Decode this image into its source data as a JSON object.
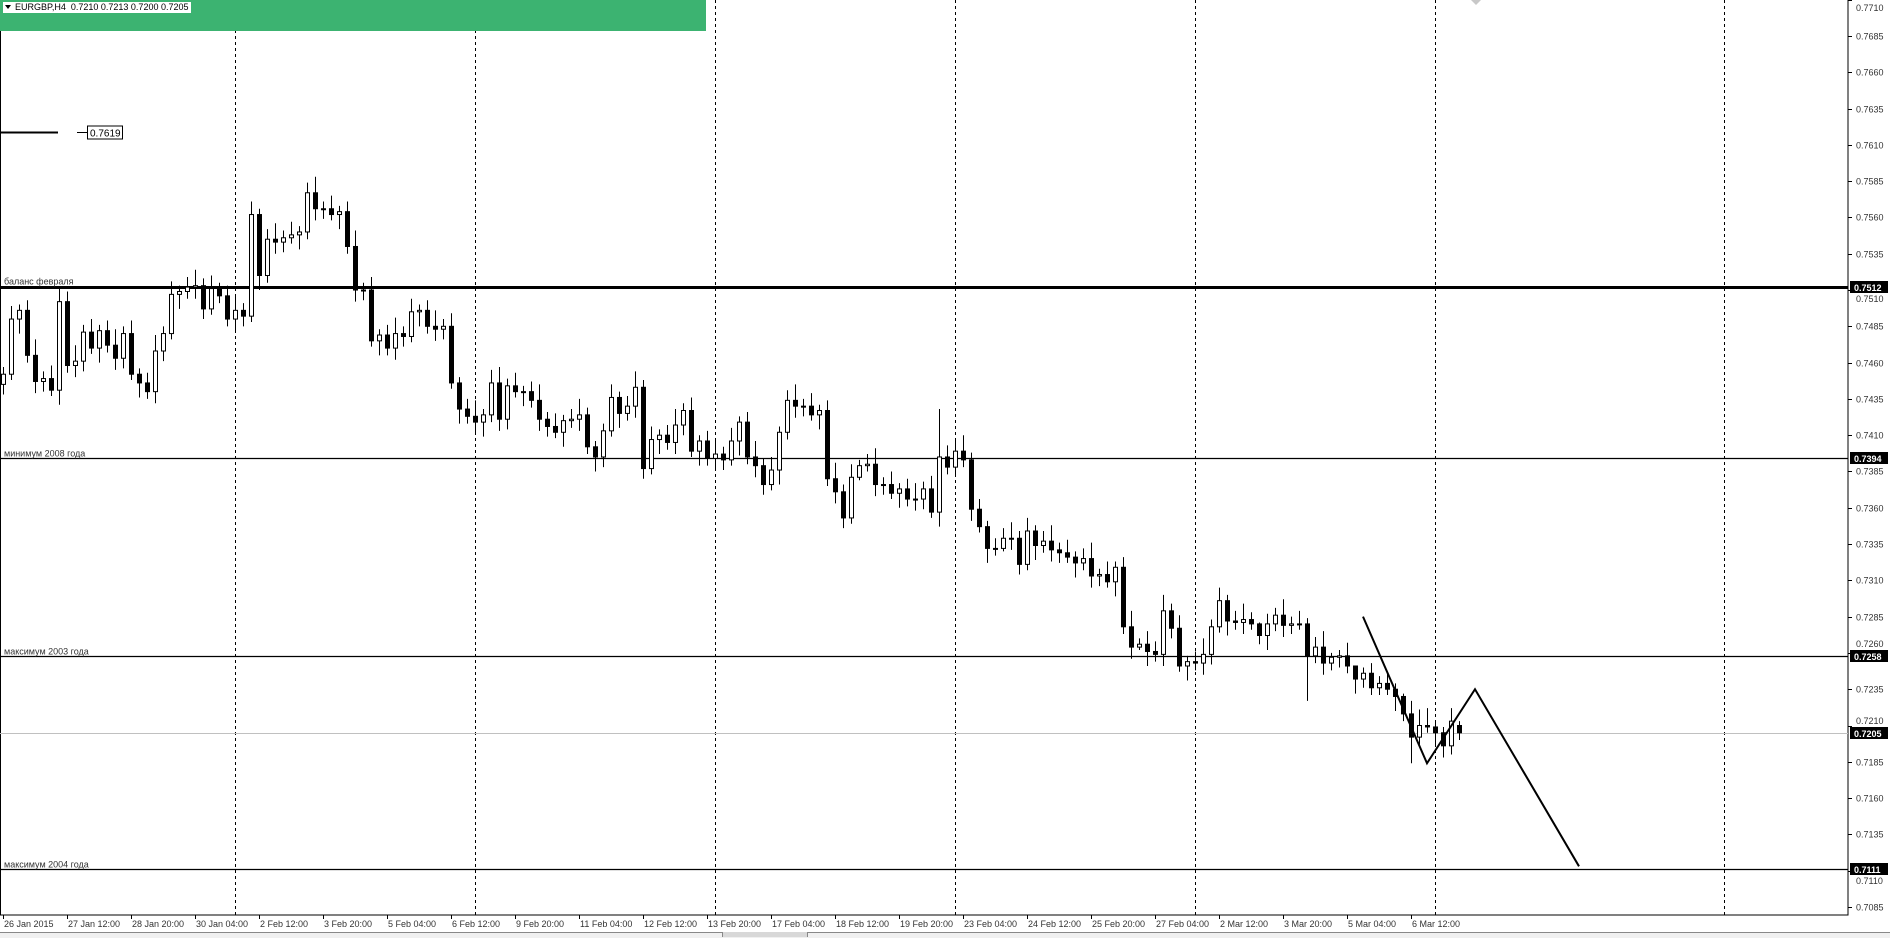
{
  "header": {
    "symbol": "EURGBP,H4",
    "ohlc": "0.7210 0.7213 0.7200 0.7205"
  },
  "colors": {
    "header_band": "#3cb371",
    "bull_body": "#ffffff",
    "bear_body": "#000000",
    "current_price_line": "#c0c0c0",
    "price_label_bg": "#000000"
  },
  "chart_data": {
    "type": "candlestick",
    "symbol": "EURGBP",
    "timeframe": "H4",
    "grid": false,
    "ylim": [
      0.7074,
      0.771
    ],
    "y_ticks": [
      "0.7710",
      "0.7685",
      "0.7660",
      "0.7635",
      "0.7610",
      "0.7585",
      "0.7560",
      "0.7535",
      "0.7510",
      "0.7485",
      "0.7460",
      "0.7435",
      "0.7410",
      "0.7385",
      "0.7360",
      "0.7335",
      "0.7310",
      "0.7285",
      "0.7260",
      "0.7235",
      "0.7210",
      "0.7185",
      "0.7160",
      "0.7135",
      "0.7110",
      "0.7085"
    ],
    "x_tick_labels": [
      "26 Jan 2015",
      "27 Jan 12:00",
      "28 Jan 20:00",
      "30 Jan 04:00",
      "2 Feb 12:00",
      "3 Feb 20:00",
      "5 Feb 04:00",
      "6 Feb 12:00",
      "9 Feb 20:00",
      "11 Feb 04:00",
      "12 Feb 12:00",
      "13 Feb 20:00",
      "17 Feb 04:00",
      "18 Feb 12:00",
      "19 Feb 20:00",
      "23 Feb 04:00",
      "24 Feb 12:00",
      "25 Feb 20:00",
      "27 Feb 04:00",
      "2 Mar 12:00",
      "3 Mar 20:00",
      "5 Mar 04:00",
      "6 Mar 12:00"
    ],
    "candles_ohlc": [
      [
        0.7445,
        0.7457,
        0.7438,
        0.7452
      ],
      [
        0.7452,
        0.7499,
        0.7448,
        0.749
      ],
      [
        0.749,
        0.75,
        0.748,
        0.7496
      ],
      [
        0.7496,
        0.7503,
        0.746,
        0.7465
      ],
      [
        0.7465,
        0.7476,
        0.7439,
        0.7447
      ],
      [
        0.7447,
        0.7454,
        0.744,
        0.7449
      ],
      [
        0.7449,
        0.7458,
        0.7437,
        0.7441
      ],
      [
        0.7441,
        0.7512,
        0.7431,
        0.7502
      ],
      [
        0.7502,
        0.7509,
        0.7453,
        0.7458
      ],
      [
        0.7458,
        0.7472,
        0.745,
        0.7461
      ],
      [
        0.7461,
        0.7486,
        0.7454,
        0.7481
      ],
      [
        0.7481,
        0.749,
        0.7466,
        0.747
      ],
      [
        0.747,
        0.7486,
        0.746,
        0.7482
      ],
      [
        0.7482,
        0.7489,
        0.7467,
        0.7472
      ],
      [
        0.7472,
        0.7483,
        0.7455,
        0.7463
      ],
      [
        0.7463,
        0.7485,
        0.7456,
        0.748
      ],
      [
        0.748,
        0.7489,
        0.7448,
        0.7452
      ],
      [
        0.7452,
        0.7456,
        0.7436,
        0.7446
      ],
      [
        0.7446,
        0.7453,
        0.7435,
        0.744
      ],
      [
        0.744,
        0.7479,
        0.7432,
        0.7468
      ],
      [
        0.7468,
        0.7485,
        0.7461,
        0.748
      ],
      [
        0.748,
        0.7516,
        0.7476,
        0.7507
      ],
      [
        0.7507,
        0.7513,
        0.7497,
        0.7509
      ],
      [
        0.7509,
        0.7519,
        0.7504,
        0.7512
      ],
      [
        0.7512,
        0.7524,
        0.7504,
        0.7513
      ],
      [
        0.7513,
        0.7518,
        0.749,
        0.7497
      ],
      [
        0.7497,
        0.752,
        0.7493,
        0.7511
      ],
      [
        0.7511,
        0.7515,
        0.7501,
        0.7506
      ],
      [
        0.7506,
        0.7513,
        0.7485,
        0.749
      ],
      [
        0.749,
        0.7507,
        0.7482,
        0.7496
      ],
      [
        0.7496,
        0.7501,
        0.7485,
        0.7492
      ],
      [
        0.7492,
        0.7571,
        0.7488,
        0.7562
      ],
      [
        0.7562,
        0.7566,
        0.751,
        0.752
      ],
      [
        0.752,
        0.7552,
        0.7515,
        0.7545
      ],
      [
        0.7545,
        0.7556,
        0.7535,
        0.7543
      ],
      [
        0.7543,
        0.7551,
        0.7536,
        0.7546
      ],
      [
        0.7546,
        0.7557,
        0.7542,
        0.7548
      ],
      [
        0.7548,
        0.7554,
        0.7538,
        0.755
      ],
      [
        0.755,
        0.7584,
        0.7545,
        0.7577
      ],
      [
        0.7577,
        0.7588,
        0.7558,
        0.7566
      ],
      [
        0.7566,
        0.7571,
        0.7559,
        0.7566
      ],
      [
        0.7566,
        0.7575,
        0.7558,
        0.7562
      ],
      [
        0.7562,
        0.7568,
        0.7552,
        0.7564
      ],
      [
        0.7564,
        0.7571,
        0.7535,
        0.754
      ],
      [
        0.754,
        0.7551,
        0.7502,
        0.751
      ],
      [
        0.751,
        0.7515,
        0.7503,
        0.751
      ],
      [
        0.751,
        0.7519,
        0.7471,
        0.7475
      ],
      [
        0.7475,
        0.7483,
        0.7465,
        0.7479
      ],
      [
        0.7479,
        0.7486,
        0.7465,
        0.747
      ],
      [
        0.747,
        0.7491,
        0.7462,
        0.748
      ],
      [
        0.748,
        0.7485,
        0.7471,
        0.7478
      ],
      [
        0.7478,
        0.7504,
        0.7474,
        0.7495
      ],
      [
        0.7495,
        0.75,
        0.7485,
        0.7496
      ],
      [
        0.7496,
        0.7503,
        0.748,
        0.7485
      ],
      [
        0.7485,
        0.7496,
        0.7475,
        0.7483
      ],
      [
        0.7483,
        0.749,
        0.7476,
        0.7485
      ],
      [
        0.7485,
        0.7494,
        0.7442,
        0.7446
      ],
      [
        0.7446,
        0.745,
        0.7418,
        0.7428
      ],
      [
        0.7428,
        0.7435,
        0.7418,
        0.7423
      ],
      [
        0.7423,
        0.7434,
        0.7411,
        0.7419
      ],
      [
        0.7419,
        0.7428,
        0.7409,
        0.7424
      ],
      [
        0.7424,
        0.7455,
        0.7419,
        0.7446
      ],
      [
        0.7446,
        0.7457,
        0.7413,
        0.7421
      ],
      [
        0.7421,
        0.7449,
        0.7414,
        0.7444
      ],
      [
        0.7444,
        0.7453,
        0.7436,
        0.744
      ],
      [
        0.744,
        0.7444,
        0.743,
        0.744
      ],
      [
        0.744,
        0.7447,
        0.7429,
        0.7434
      ],
      [
        0.7434,
        0.7445,
        0.7413,
        0.7421
      ],
      [
        0.7421,
        0.7426,
        0.7409,
        0.7416
      ],
      [
        0.7416,
        0.7425,
        0.7408,
        0.7412
      ],
      [
        0.7412,
        0.7424,
        0.7402,
        0.742
      ],
      [
        0.742,
        0.7428,
        0.7415,
        0.7421
      ],
      [
        0.7421,
        0.7435,
        0.7413,
        0.7424
      ],
      [
        0.7424,
        0.7429,
        0.7397,
        0.7402
      ],
      [
        0.7402,
        0.7406,
        0.7385,
        0.7395
      ],
      [
        0.7395,
        0.7418,
        0.7388,
        0.7413
      ],
      [
        0.7413,
        0.7445,
        0.7409,
        0.7436
      ],
      [
        0.7436,
        0.744,
        0.7415,
        0.7425
      ],
      [
        0.7425,
        0.7437,
        0.742,
        0.743
      ],
      [
        0.743,
        0.7454,
        0.7422,
        0.7443
      ],
      [
        0.7443,
        0.7448,
        0.738,
        0.7387
      ],
      [
        0.7387,
        0.7416,
        0.7383,
        0.7407
      ],
      [
        0.7407,
        0.7414,
        0.7397,
        0.741
      ],
      [
        0.741,
        0.7417,
        0.74,
        0.7405
      ],
      [
        0.7405,
        0.7428,
        0.7397,
        0.7417
      ],
      [
        0.7417,
        0.7432,
        0.741,
        0.7427
      ],
      [
        0.7427,
        0.7436,
        0.7395,
        0.7399
      ],
      [
        0.7399,
        0.741,
        0.7389,
        0.7406
      ],
      [
        0.7406,
        0.7413,
        0.7389,
        0.7394
      ],
      [
        0.7394,
        0.7408,
        0.7386,
        0.7397
      ],
      [
        0.7397,
        0.7402,
        0.7386,
        0.7393
      ],
      [
        0.7393,
        0.7415,
        0.7389,
        0.7406
      ],
      [
        0.7406,
        0.7423,
        0.7396,
        0.7419
      ],
      [
        0.7419,
        0.7426,
        0.739,
        0.7395
      ],
      [
        0.7395,
        0.7406,
        0.7381,
        0.7389
      ],
      [
        0.7389,
        0.7394,
        0.7369,
        0.7376
      ],
      [
        0.7376,
        0.7395,
        0.7372,
        0.7386
      ],
      [
        0.7386,
        0.7416,
        0.7376,
        0.7412
      ],
      [
        0.7412,
        0.7441,
        0.7407,
        0.7434
      ],
      [
        0.7434,
        0.7445,
        0.7422,
        0.743
      ],
      [
        0.743,
        0.7435,
        0.7423,
        0.743
      ],
      [
        0.743,
        0.7439,
        0.742,
        0.7424
      ],
      [
        0.7424,
        0.7431,
        0.7414,
        0.7427
      ],
      [
        0.7427,
        0.7434,
        0.7375,
        0.738
      ],
      [
        0.738,
        0.7391,
        0.7363,
        0.7371
      ],
      [
        0.7371,
        0.7376,
        0.7346,
        0.7353
      ],
      [
        0.7353,
        0.739,
        0.7349,
        0.7381
      ],
      [
        0.7381,
        0.7393,
        0.7379,
        0.7389
      ],
      [
        0.7389,
        0.7397,
        0.7385,
        0.739
      ],
      [
        0.739,
        0.7401,
        0.7368,
        0.7376
      ],
      [
        0.7376,
        0.7381,
        0.7369,
        0.7376
      ],
      [
        0.7376,
        0.7385,
        0.7366,
        0.737
      ],
      [
        0.737,
        0.7377,
        0.736,
        0.7373
      ],
      [
        0.7373,
        0.738,
        0.7361,
        0.7366
      ],
      [
        0.7366,
        0.7377,
        0.7358,
        0.7366
      ],
      [
        0.7366,
        0.7378,
        0.7359,
        0.7373
      ],
      [
        0.7373,
        0.7382,
        0.7353,
        0.7357
      ],
      [
        0.7357,
        0.7428,
        0.7347,
        0.7395
      ],
      [
        0.7395,
        0.7403,
        0.7383,
        0.7388
      ],
      [
        0.7388,
        0.7406,
        0.7383,
        0.7399
      ],
      [
        0.7399,
        0.741,
        0.7388,
        0.7393
      ],
      [
        0.7393,
        0.7398,
        0.7351,
        0.7359
      ],
      [
        0.7359,
        0.7366,
        0.7343,
        0.7347
      ],
      [
        0.7347,
        0.7351,
        0.7322,
        0.7332
      ],
      [
        0.7332,
        0.7339,
        0.7327,
        0.7332
      ],
      [
        0.7332,
        0.7346,
        0.733,
        0.7339
      ],
      [
        0.7339,
        0.735,
        0.7331,
        0.7339
      ],
      [
        0.7339,
        0.7344,
        0.7314,
        0.7321
      ],
      [
        0.7321,
        0.7353,
        0.7317,
        0.7344
      ],
      [
        0.7344,
        0.7348,
        0.7324,
        0.7334
      ],
      [
        0.7334,
        0.7344,
        0.7329,
        0.7337
      ],
      [
        0.7337,
        0.7348,
        0.7323,
        0.7331
      ],
      [
        0.7331,
        0.7336,
        0.7322,
        0.7329
      ],
      [
        0.7329,
        0.7338,
        0.7322,
        0.7326
      ],
      [
        0.7326,
        0.733,
        0.7312,
        0.7322
      ],
      [
        0.7322,
        0.7332,
        0.7317,
        0.7325
      ],
      [
        0.7325,
        0.7336,
        0.7305,
        0.7313
      ],
      [
        0.7313,
        0.7318,
        0.7306,
        0.7314
      ],
      [
        0.7314,
        0.7323,
        0.7305,
        0.7309
      ],
      [
        0.7309,
        0.7323,
        0.7299,
        0.7319
      ],
      [
        0.7319,
        0.7326,
        0.7273,
        0.7278
      ],
      [
        0.7278,
        0.7289,
        0.7256,
        0.7264
      ],
      [
        0.7264,
        0.727,
        0.7262,
        0.7266
      ],
      [
        0.7266,
        0.7275,
        0.7251,
        0.7261
      ],
      [
        0.7261,
        0.7268,
        0.7254,
        0.7259
      ],
      [
        0.7259,
        0.73,
        0.7251,
        0.7289
      ],
      [
        0.7289,
        0.7294,
        0.727,
        0.7277
      ],
      [
        0.7277,
        0.7286,
        0.7247,
        0.7251
      ],
      [
        0.7251,
        0.7258,
        0.7241,
        0.7254
      ],
      [
        0.7254,
        0.7261,
        0.7248,
        0.7253
      ],
      [
        0.7253,
        0.727,
        0.7245,
        0.7259
      ],
      [
        0.7259,
        0.7283,
        0.7252,
        0.7278
      ],
      [
        0.7278,
        0.7305,
        0.7274,
        0.7296
      ],
      [
        0.7296,
        0.73,
        0.7272,
        0.7282
      ],
      [
        0.7282,
        0.7289,
        0.7276,
        0.7281
      ],
      [
        0.7281,
        0.7294,
        0.7273,
        0.7283
      ],
      [
        0.7283,
        0.7288,
        0.7276,
        0.728
      ],
      [
        0.728,
        0.7281,
        0.7266,
        0.7272
      ],
      [
        0.7272,
        0.7287,
        0.7262,
        0.728
      ],
      [
        0.728,
        0.7291,
        0.7275,
        0.7286
      ],
      [
        0.7286,
        0.7297,
        0.7271,
        0.7279
      ],
      [
        0.7279,
        0.7285,
        0.7273,
        0.728
      ],
      [
        0.728,
        0.7289,
        0.7276,
        0.728
      ],
      [
        0.728,
        0.7284,
        0.7227,
        0.7258
      ],
      [
        0.7258,
        0.7271,
        0.7253,
        0.7264
      ],
      [
        0.7264,
        0.7275,
        0.7245,
        0.7253
      ],
      [
        0.7253,
        0.726,
        0.7248,
        0.7257
      ],
      [
        0.7257,
        0.7262,
        0.725,
        0.7258
      ],
      [
        0.7258,
        0.7267,
        0.7246,
        0.7251
      ],
      [
        0.7251,
        0.725,
        0.7232,
        0.7242
      ],
      [
        0.7242,
        0.725,
        0.7236,
        0.7246
      ],
      [
        0.7246,
        0.7253,
        0.7231,
        0.7236
      ],
      [
        0.7236,
        0.7244,
        0.7231,
        0.7239
      ],
      [
        0.7239,
        0.7246,
        0.7231,
        0.7235
      ],
      [
        0.7235,
        0.7239,
        0.722,
        0.723
      ],
      [
        0.723,
        0.7232,
        0.7213,
        0.7218
      ],
      [
        0.7218,
        0.7227,
        0.7184,
        0.7202
      ],
      [
        0.7202,
        0.7221,
        0.7197,
        0.721
      ],
      [
        0.721,
        0.7222,
        0.7205,
        0.7209
      ],
      [
        0.7209,
        0.7213,
        0.7197,
        0.7205
      ],
      [
        0.7205,
        0.7209,
        0.7188,
        0.7196
      ],
      [
        0.7196,
        0.7222,
        0.719,
        0.7213
      ],
      [
        0.721,
        0.7213,
        0.72,
        0.7205
      ]
    ],
    "levels": [
      {
        "price": 0.7512,
        "label": "баланс февраля",
        "price_label": "0.7512",
        "weight": "thick"
      },
      {
        "price": 0.7394,
        "label": "минимум 2008 года",
        "price_label": "0.7394",
        "weight": "thin"
      },
      {
        "price": 0.7258,
        "label": "максимум 2003 года",
        "price_label": "0.7258",
        "weight": "thin"
      },
      {
        "price": 0.7111,
        "label": "максимум 2004 года",
        "price_label": "0.7111",
        "weight": "thin"
      }
    ],
    "current_price": {
      "price": 0.7205,
      "price_label": "0.7205"
    },
    "marker": {
      "price": 0.7619,
      "label": "0.7619"
    },
    "zigzag": [
      {
        "bar": 170,
        "price": 0.7285
      },
      {
        "bar": 178,
        "price": 0.7184
      },
      {
        "bar": 184,
        "price": 0.7235
      },
      {
        "bar": 197,
        "price": 0.7113
      }
    ]
  }
}
